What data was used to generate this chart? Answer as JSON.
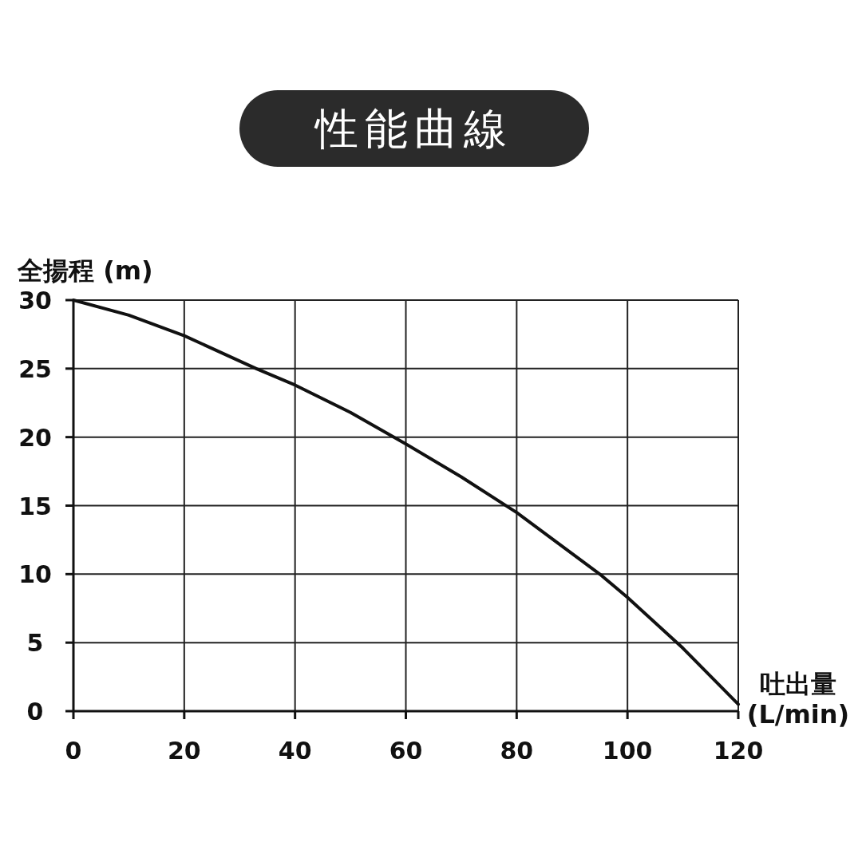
{
  "chart_data": {
    "type": "line",
    "title": "性能曲線",
    "xlabel": "吐出量(L/min)",
    "ylabel": "全揚程 (m)",
    "x": [
      0,
      10,
      20,
      33,
      40,
      50,
      60,
      70,
      80,
      90,
      95,
      100,
      110,
      120
    ],
    "values": [
      30,
      28.9,
      27.4,
      25,
      23.8,
      21.8,
      19.5,
      17.1,
      14.5,
      11.5,
      10,
      8.3,
      4.6,
      0.5
    ],
    "color": "#111111",
    "xlim": [
      0,
      120
    ],
    "ylim": [
      0,
      30
    ],
    "xticks": [
      0,
      20,
      40,
      60,
      80,
      100,
      120
    ],
    "yticks": [
      0,
      5,
      10,
      15,
      20,
      25,
      30
    ],
    "grid": true,
    "marker": "none",
    "line_style": "solid"
  }
}
